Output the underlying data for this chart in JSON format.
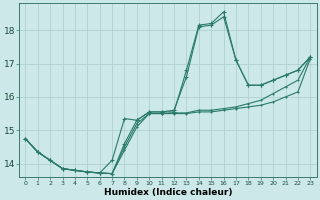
{
  "xlabel": "Humidex (Indice chaleur)",
  "background_color": "#cce8e8",
  "grid_color": "#b0d0d0",
  "line_color": "#2a7a6a",
  "x_ticks": [
    0,
    1,
    2,
    3,
    4,
    5,
    6,
    7,
    8,
    9,
    10,
    11,
    12,
    13,
    14,
    15,
    16,
    17,
    18,
    19,
    20,
    21,
    22,
    23
  ],
  "y_ticks": [
    14,
    15,
    16,
    17,
    18
  ],
  "xlim": [
    -0.5,
    23.5
  ],
  "ylim": [
    13.6,
    18.8
  ],
  "series": [
    [
      14.75,
      14.35,
      14.1,
      13.85,
      13.8,
      13.75,
      13.72,
      13.7,
      14.4,
      15.1,
      15.5,
      15.5,
      15.5,
      15.5,
      15.55,
      15.55,
      15.6,
      15.65,
      15.7,
      15.75,
      15.85,
      16.0,
      16.15,
      17.15
    ],
    [
      14.75,
      14.35,
      14.1,
      13.85,
      13.8,
      13.75,
      13.72,
      13.7,
      14.5,
      15.2,
      15.5,
      15.5,
      15.52,
      15.52,
      15.6,
      15.6,
      15.65,
      15.7,
      15.8,
      15.9,
      16.1,
      16.3,
      16.5,
      17.2
    ],
    [
      14.75,
      14.35,
      14.1,
      13.85,
      13.8,
      13.75,
      13.72,
      13.7,
      14.6,
      15.3,
      15.55,
      15.55,
      15.6,
      16.6,
      18.1,
      18.15,
      18.4,
      17.1,
      16.35,
      16.35,
      16.5,
      16.65,
      16.8,
      17.2
    ],
    [
      14.75,
      14.35,
      14.1,
      13.85,
      13.8,
      13.75,
      13.72,
      14.1,
      15.35,
      15.3,
      15.55,
      15.55,
      15.55,
      16.8,
      18.15,
      18.2,
      18.55,
      17.1,
      16.35,
      16.35,
      16.5,
      16.65,
      16.8,
      17.2
    ]
  ]
}
